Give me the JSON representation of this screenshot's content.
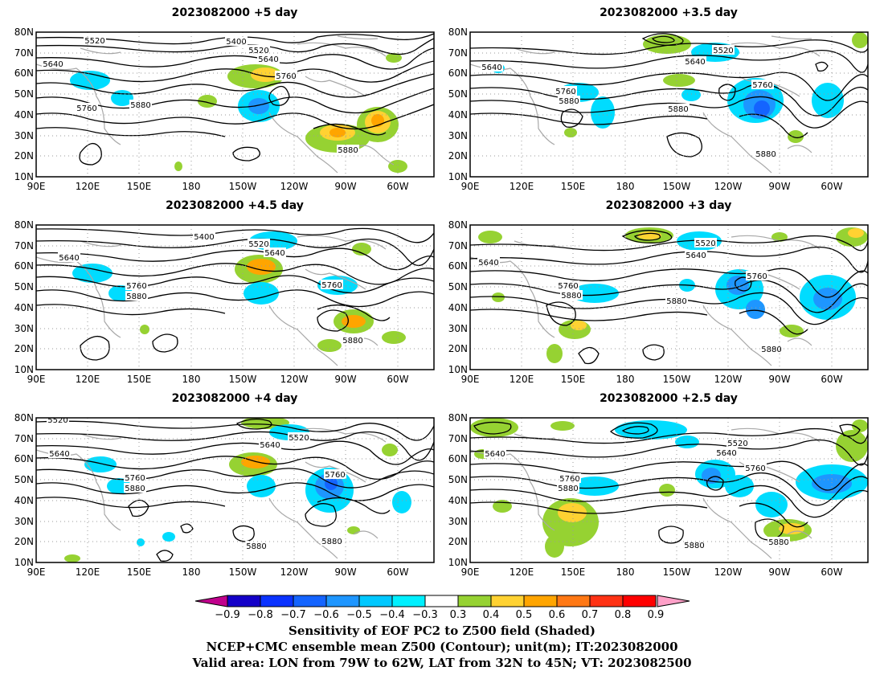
{
  "panels": [
    {
      "title": "2023082000  +5  day"
    },
    {
      "title": "2023082000  +3.5  day"
    },
    {
      "title": "2023082000  +4.5  day"
    },
    {
      "title": "2023082000  +3  day"
    },
    {
      "title": "2023082000  +4  day"
    },
    {
      "title": "2023082000  +2.5  day"
    }
  ],
  "lat_labels": [
    "10N",
    "20N",
    "30N",
    "40N",
    "50N",
    "60N",
    "70N",
    "80N"
  ],
  "lon_labels": [
    "90E",
    "120E",
    "150E",
    "180",
    "150W",
    "120W",
    "90W",
    "60W"
  ],
  "contour_labels": [
    "5400",
    "5520",
    "5640",
    "5760",
    "5880"
  ],
  "colorbar": {
    "ticks": [
      "−0.9",
      "−0.8",
      "−0.7",
      "−0.6",
      "−0.5",
      "−0.4",
      "−0.3",
      "0.3",
      "0.4",
      "0.5",
      "0.6",
      "0.7",
      "0.8",
      "0.9"
    ],
    "colors": [
      "#c0008c",
      "#1400c8",
      "#0a32ff",
      "#1464ff",
      "#1e96ff",
      "#00c8ff",
      "#00f0ff",
      "#ffffff",
      "#96d232",
      "#ffd232",
      "#ffa500",
      "#ff7814",
      "#ff3214",
      "#ff0000",
      "#ffa0c8"
    ]
  },
  "captions": {
    "line1": "Sensitivity of EOF PC2 to Z500 field (Shaded)",
    "line2": "NCEP+CMC ensemble mean Z500 (Contour); unit(m); IT:2023082000",
    "line3": "Valid area: LON from 79W to 62W, LAT from 32N to 45N; VT: 2023082500"
  }
}
